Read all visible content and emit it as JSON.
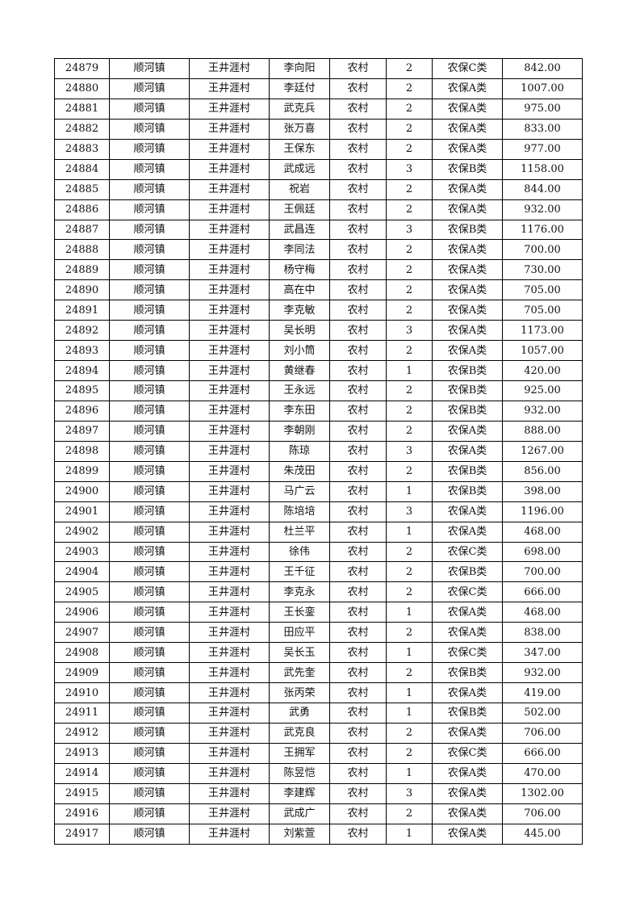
{
  "rows": [
    [
      "24879",
      "顺河镇",
      "王井涯村",
      "李向阳",
      "农村",
      "2",
      "农保C类",
      "842.00"
    ],
    [
      "24880",
      "顺河镇",
      "王井涯村",
      "李廷付",
      "农村",
      "2",
      "农保A类",
      "1007.00"
    ],
    [
      "24881",
      "顺河镇",
      "王井涯村",
      "武克兵",
      "农村",
      "2",
      "农保A类",
      "975.00"
    ],
    [
      "24882",
      "顺河镇",
      "王井涯村",
      "张万喜",
      "农村",
      "2",
      "农保A类",
      "833.00"
    ],
    [
      "24883",
      "顺河镇",
      "王井涯村",
      "王保东",
      "农村",
      "2",
      "农保A类",
      "977.00"
    ],
    [
      "24884",
      "顺河镇",
      "王井涯村",
      "武成远",
      "农村",
      "3",
      "农保B类",
      "1158.00"
    ],
    [
      "24885",
      "顺河镇",
      "王井涯村",
      "祝岩",
      "农村",
      "2",
      "农保A类",
      "844.00"
    ],
    [
      "24886",
      "顺河镇",
      "王井涯村",
      "王佩廷",
      "农村",
      "2",
      "农保A类",
      "932.00"
    ],
    [
      "24887",
      "顺河镇",
      "王井涯村",
      "武昌连",
      "农村",
      "3",
      "农保B类",
      "1176.00"
    ],
    [
      "24888",
      "顺河镇",
      "王井涯村",
      "李同法",
      "农村",
      "2",
      "农保A类",
      "700.00"
    ],
    [
      "24889",
      "顺河镇",
      "王井涯村",
      "杨守梅",
      "农村",
      "2",
      "农保A类",
      "730.00"
    ],
    [
      "24890",
      "顺河镇",
      "王井涯村",
      "高在中",
      "农村",
      "2",
      "农保A类",
      "705.00"
    ],
    [
      "24891",
      "顺河镇",
      "王井涯村",
      "李克敏",
      "农村",
      "2",
      "农保A类",
      "705.00"
    ],
    [
      "24892",
      "顺河镇",
      "王井涯村",
      "吴长明",
      "农村",
      "3",
      "农保A类",
      "1173.00"
    ],
    [
      "24893",
      "顺河镇",
      "王井涯村",
      "刘小筒",
      "农村",
      "2",
      "农保A类",
      "1057.00"
    ],
    [
      "24894",
      "顺河镇",
      "王井涯村",
      "黄继春",
      "农村",
      "1",
      "农保B类",
      "420.00"
    ],
    [
      "24895",
      "顺河镇",
      "王井涯村",
      "王永远",
      "农村",
      "2",
      "农保B类",
      "925.00"
    ],
    [
      "24896",
      "顺河镇",
      "王井涯村",
      "李东田",
      "农村",
      "2",
      "农保B类",
      "932.00"
    ],
    [
      "24897",
      "顺河镇",
      "王井涯村",
      "李朝刚",
      "农村",
      "2",
      "农保A类",
      "888.00"
    ],
    [
      "24898",
      "顺河镇",
      "王井涯村",
      "陈琼",
      "农村",
      "3",
      "农保A类",
      "1267.00"
    ],
    [
      "24899",
      "顺河镇",
      "王井涯村",
      "朱茂田",
      "农村",
      "2",
      "农保B类",
      "856.00"
    ],
    [
      "24900",
      "顺河镇",
      "王井涯村",
      "马广云",
      "农村",
      "1",
      "农保B类",
      "398.00"
    ],
    [
      "24901",
      "顺河镇",
      "王井涯村",
      "陈培培",
      "农村",
      "3",
      "农保A类",
      "1196.00"
    ],
    [
      "24902",
      "顺河镇",
      "王井涯村",
      "杜兰平",
      "农村",
      "1",
      "农保A类",
      "468.00"
    ],
    [
      "24903",
      "顺河镇",
      "王井涯村",
      "徐伟",
      "农村",
      "2",
      "农保C类",
      "698.00"
    ],
    [
      "24904",
      "顺河镇",
      "王井涯村",
      "王千征",
      "农村",
      "2",
      "农保B类",
      "700.00"
    ],
    [
      "24905",
      "顺河镇",
      "王井涯村",
      "李克永",
      "农村",
      "2",
      "农保C类",
      "666.00"
    ],
    [
      "24906",
      "顺河镇",
      "王井涯村",
      "王长銮",
      "农村",
      "1",
      "农保A类",
      "468.00"
    ],
    [
      "24907",
      "顺河镇",
      "王井涯村",
      "田应平",
      "农村",
      "2",
      "农保A类",
      "838.00"
    ],
    [
      "24908",
      "顺河镇",
      "王井涯村",
      "吴长玉",
      "农村",
      "1",
      "农保C类",
      "347.00"
    ],
    [
      "24909",
      "顺河镇",
      "王井涯村",
      "武先奎",
      "农村",
      "2",
      "农保B类",
      "932.00"
    ],
    [
      "24910",
      "顺河镇",
      "王井涯村",
      "张丙荣",
      "农村",
      "1",
      "农保A类",
      "419.00"
    ],
    [
      "24911",
      "顺河镇",
      "王井涯村",
      "武勇",
      "农村",
      "1",
      "农保B类",
      "502.00"
    ],
    [
      "24912",
      "顺河镇",
      "王井涯村",
      "武克良",
      "农村",
      "2",
      "农保A类",
      "706.00"
    ],
    [
      "24913",
      "顺河镇",
      "王井涯村",
      "王拥军",
      "农村",
      "2",
      "农保C类",
      "666.00"
    ],
    [
      "24914",
      "顺河镇",
      "王井涯村",
      "陈昱恺",
      "农村",
      "1",
      "农保A类",
      "470.00"
    ],
    [
      "24915",
      "顺河镇",
      "王井涯村",
      "李建辉",
      "农村",
      "3",
      "农保A类",
      "1302.00"
    ],
    [
      "24916",
      "顺河镇",
      "王井涯村",
      "武成广",
      "农村",
      "2",
      "农保A类",
      "706.00"
    ],
    [
      "24917",
      "顺河镇",
      "王井涯村",
      "刘紫萱",
      "农村",
      "1",
      "农保A类",
      "445.00"
    ]
  ]
}
